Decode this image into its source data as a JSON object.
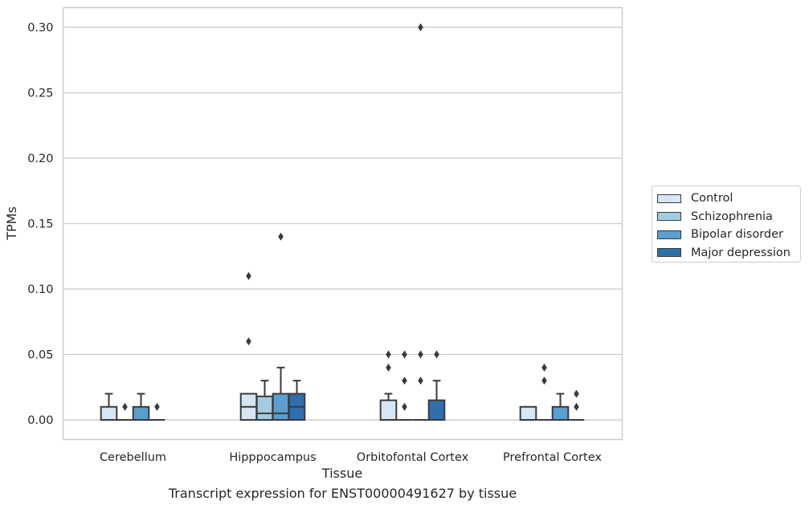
{
  "chart_data": {
    "type": "box",
    "title": "",
    "xlabel": "Tissue",
    "ylabel": "TPMs",
    "caption": "Transcript expression for ENST00000491627 by tissue",
    "ylim": [
      -0.015,
      0.315
    ],
    "yticks": [
      "0.00",
      "0.05",
      "0.10",
      "0.15",
      "0.20",
      "0.25",
      "0.30"
    ],
    "grid": true,
    "legend_position": "right",
    "categories": [
      "Cerebellum",
      "Hipppocampus",
      "Orbitofontal Cortex",
      "Prefrontal Cortex"
    ],
    "series": [
      {
        "name": "Control",
        "color": "#d6e6f4",
        "boxes": [
          {
            "q1": 0.0,
            "median": 0.0,
            "q3": 0.01,
            "whislo": 0.0,
            "whishi": 0.02,
            "fliers": []
          },
          {
            "q1": 0.0,
            "median": 0.01,
            "q3": 0.02,
            "whislo": 0.0,
            "whishi": 0.02,
            "fliers": [
              0.06,
              0.11
            ]
          },
          {
            "q1": 0.0,
            "median": 0.0,
            "q3": 0.015,
            "whislo": 0.0,
            "whishi": 0.02,
            "fliers": [
              0.04,
              0.05
            ]
          },
          {
            "q1": 0.0,
            "median": 0.0,
            "q3": 0.01,
            "whislo": 0.0,
            "whishi": 0.01,
            "fliers": []
          }
        ]
      },
      {
        "name": "Schizophrenia",
        "color": "#a3cce3",
        "boxes": [
          {
            "q1": 0.0,
            "median": 0.0,
            "q3": 0.0,
            "whislo": 0.0,
            "whishi": 0.0,
            "fliers": [
              0.01
            ]
          },
          {
            "q1": 0.0,
            "median": 0.005,
            "q3": 0.018,
            "whislo": 0.0,
            "whishi": 0.03,
            "fliers": []
          },
          {
            "q1": 0.0,
            "median": 0.0,
            "q3": 0.0,
            "whislo": 0.0,
            "whishi": 0.0,
            "fliers": [
              0.01,
              0.03,
              0.05
            ]
          },
          {
            "q1": 0.0,
            "median": 0.0,
            "q3": 0.0,
            "whislo": 0.0,
            "whishi": 0.0,
            "fliers": [
              0.03,
              0.04
            ]
          }
        ]
      },
      {
        "name": "Bipolar disorder",
        "color": "#5a9fce",
        "boxes": [
          {
            "q1": 0.0,
            "median": 0.0,
            "q3": 0.01,
            "whislo": 0.0,
            "whishi": 0.02,
            "fliers": []
          },
          {
            "q1": 0.0,
            "median": 0.005,
            "q3": 0.02,
            "whislo": 0.0,
            "whishi": 0.04,
            "fliers": [
              0.14
            ]
          },
          {
            "q1": 0.0,
            "median": 0.0,
            "q3": 0.0,
            "whislo": 0.0,
            "whishi": 0.0,
            "fliers": [
              0.03,
              0.05,
              0.3
            ]
          },
          {
            "q1": 0.0,
            "median": 0.0,
            "q3": 0.01,
            "whislo": 0.0,
            "whishi": 0.02,
            "fliers": []
          }
        ]
      },
      {
        "name": "Major depression",
        "color": "#2f6fad",
        "boxes": [
          {
            "q1": 0.0,
            "median": 0.0,
            "q3": 0.0,
            "whislo": 0.0,
            "whishi": 0.0,
            "fliers": [
              0.01
            ]
          },
          {
            "q1": 0.0,
            "median": 0.01,
            "q3": 0.02,
            "whislo": 0.0,
            "whishi": 0.03,
            "fliers": []
          },
          {
            "q1": 0.0,
            "median": 0.0,
            "q3": 0.015,
            "whislo": 0.0,
            "whishi": 0.03,
            "fliers": [
              0.05
            ]
          },
          {
            "q1": 0.0,
            "median": 0.0,
            "q3": 0.0,
            "whislo": 0.0,
            "whishi": 0.0,
            "fliers": [
              0.01,
              0.02
            ]
          }
        ]
      }
    ]
  }
}
